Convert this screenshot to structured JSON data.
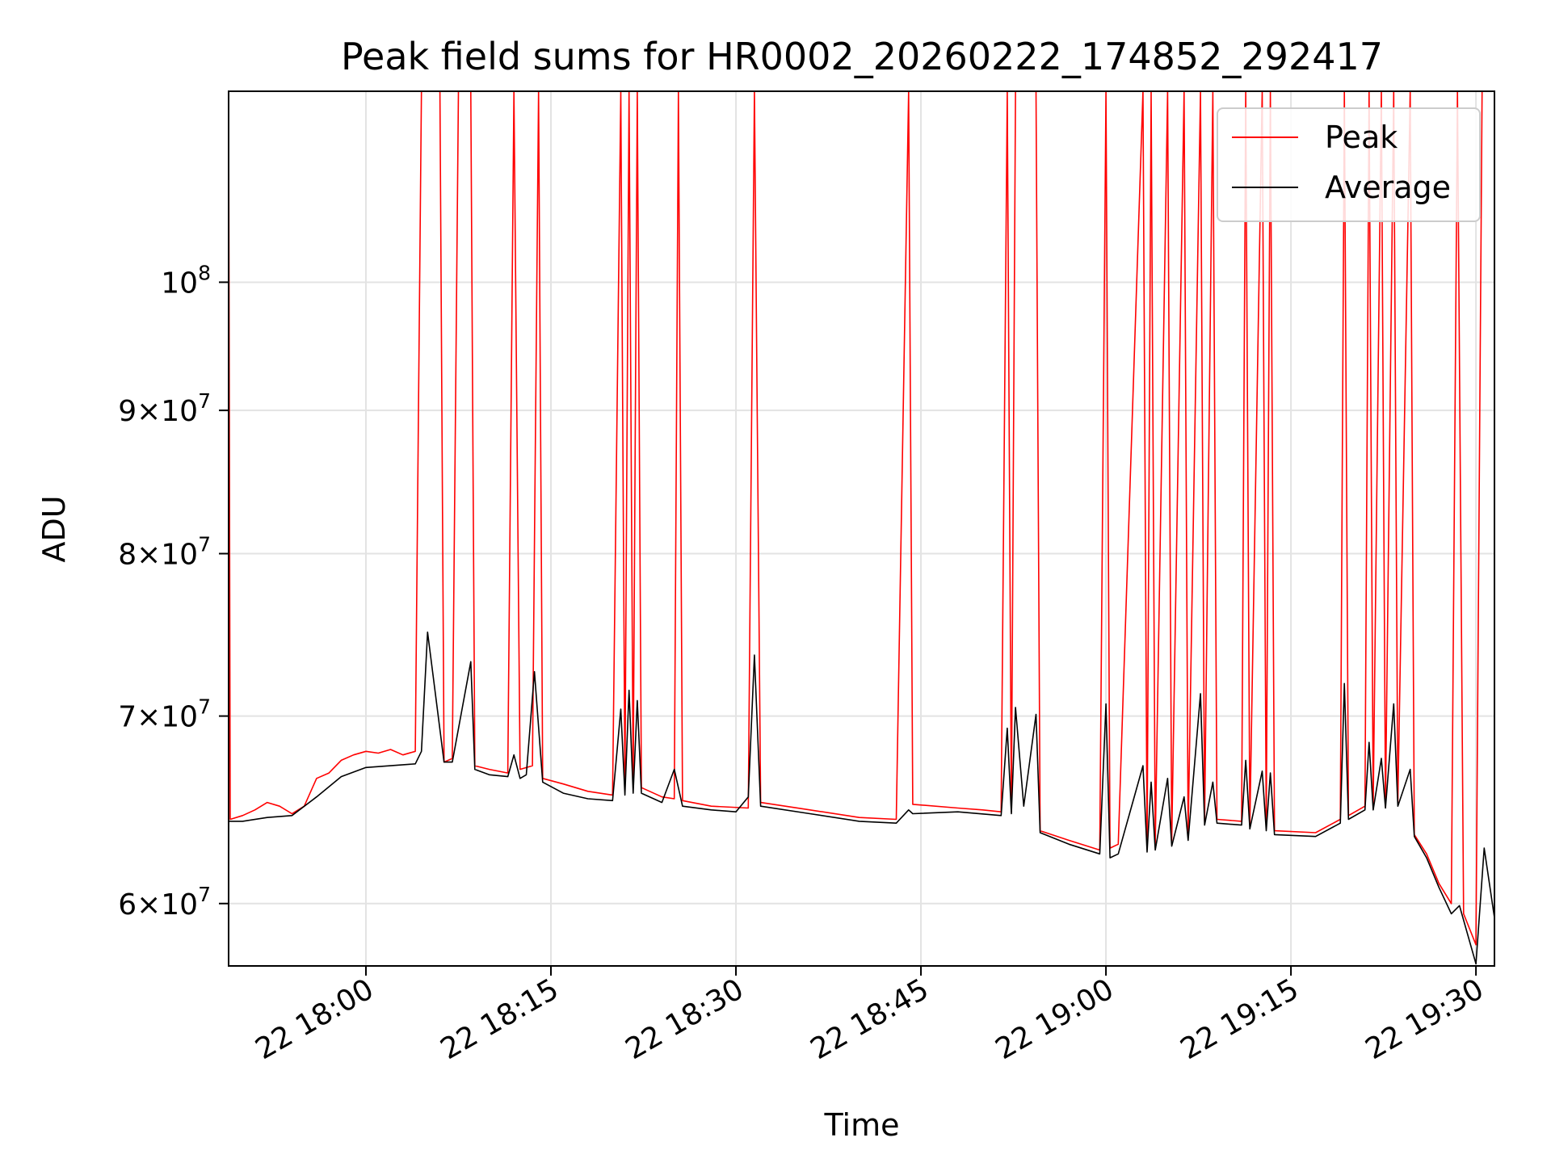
{
  "chart_data": {
    "type": "line",
    "title": "Peak field sums for HR0002_20260222_174852_292417",
    "xlabel": "Time",
    "ylabel": "ADU",
    "yscale": "log",
    "ylim": [
      57000000,
      117000000
    ],
    "xlim": [
      "2026-02-22 17:48:52",
      "2026-02-22 19:31:30"
    ],
    "grid": true,
    "legend": "top-right",
    "xticks": [
      {
        "t": "2026-02-22 18:00",
        "label": "22 18:00"
      },
      {
        "t": "2026-02-22 18:15",
        "label": "22 18:15"
      },
      {
        "t": "2026-02-22 18:30",
        "label": "22 18:30"
      },
      {
        "t": "2026-02-22 18:45",
        "label": "22 18:45"
      },
      {
        "t": "2026-02-22 19:00",
        "label": "22 19:00"
      },
      {
        "t": "2026-02-22 19:15",
        "label": "22 19:15"
      },
      {
        "t": "2026-02-22 19:30",
        "label": "22 19:30"
      }
    ],
    "yticks": [
      {
        "v": 60000000,
        "base": "6×10",
        "exp": "7"
      },
      {
        "v": 70000000,
        "base": "7×10",
        "exp": "7"
      },
      {
        "v": 80000000,
        "base": "8×10",
        "exp": "7"
      },
      {
        "v": 90000000,
        "base": "9×10",
        "exp": "7"
      },
      {
        "v": 100000000,
        "base": "10",
        "exp": "8"
      }
    ],
    "series": [
      {
        "name": "Peak",
        "color": "#ff0000",
        "points": [
          [
            "2026-02-22 17:48:52",
            117000000
          ],
          [
            "2026-02-22 17:49:00",
            64300000
          ],
          [
            "2026-02-22 17:50:00",
            64500000
          ],
          [
            "2026-02-22 17:51:00",
            64800000
          ],
          [
            "2026-02-22 17:52:00",
            65200000
          ],
          [
            "2026-02-22 17:53:00",
            65000000
          ],
          [
            "2026-02-22 17:54:00",
            64600000
          ],
          [
            "2026-02-22 17:55:00",
            65000000
          ],
          [
            "2026-02-22 17:56:00",
            66500000
          ],
          [
            "2026-02-22 17:57:00",
            66800000
          ],
          [
            "2026-02-22 17:58:00",
            67500000
          ],
          [
            "2026-02-22 17:59:00",
            67800000
          ],
          [
            "2026-02-22 18:00:00",
            68000000
          ],
          [
            "2026-02-22 18:01:00",
            67900000
          ],
          [
            "2026-02-22 18:02:00",
            68100000
          ],
          [
            "2026-02-22 18:03:00",
            67800000
          ],
          [
            "2026-02-22 18:04:00",
            68000000
          ],
          [
            "2026-02-22 18:04:30",
            117000000
          ],
          [
            "2026-02-22 18:06:00",
            117000000
          ],
          [
            "2026-02-22 18:06:20",
            67400000
          ],
          [
            "2026-02-22 18:07:00",
            67600000
          ],
          [
            "2026-02-22 18:07:30",
            117000000
          ],
          [
            "2026-02-22 18:08:30",
            117000000
          ],
          [
            "2026-02-22 18:08:50",
            67200000
          ],
          [
            "2026-02-22 18:10:00",
            67000000
          ],
          [
            "2026-02-22 18:11:30",
            66800000
          ],
          [
            "2026-02-22 18:12:00",
            117000000
          ],
          [
            "2026-02-22 18:12:30",
            67000000
          ],
          [
            "2026-02-22 18:13:30",
            67200000
          ],
          [
            "2026-02-22 18:14:00",
            117000000
          ],
          [
            "2026-02-22 18:14:20",
            66500000
          ],
          [
            "2026-02-22 18:16:00",
            66200000
          ],
          [
            "2026-02-22 18:18:00",
            65800000
          ],
          [
            "2026-02-22 18:20:00",
            65600000
          ],
          [
            "2026-02-22 18:20:40",
            117000000
          ],
          [
            "2026-02-22 18:21:00",
            66000000
          ],
          [
            "2026-02-22 18:21:20",
            117000000
          ],
          [
            "2026-02-22 18:21:40",
            66200000
          ],
          [
            "2026-02-22 18:22:00",
            117000000
          ],
          [
            "2026-02-22 18:22:20",
            66000000
          ],
          [
            "2026-02-22 18:24:00",
            65500000
          ],
          [
            "2026-02-22 18:25:00",
            65400000
          ],
          [
            "2026-02-22 18:25:20",
            117000000
          ],
          [
            "2026-02-22 18:25:40",
            65300000
          ],
          [
            "2026-02-22 18:28:00",
            65000000
          ],
          [
            "2026-02-22 18:31:00",
            64900000
          ],
          [
            "2026-02-22 18:31:30",
            117000000
          ],
          [
            "2026-02-22 18:32:00",
            65200000
          ],
          [
            "2026-02-22 18:36:00",
            64800000
          ],
          [
            "2026-02-22 18:40:00",
            64400000
          ],
          [
            "2026-02-22 18:43:00",
            64300000
          ],
          [
            "2026-02-22 18:44:00",
            117000000
          ],
          [
            "2026-02-22 18:44:20",
            65100000
          ],
          [
            "2026-02-22 18:48:00",
            64900000
          ],
          [
            "2026-02-22 18:50:00",
            64800000
          ],
          [
            "2026-02-22 18:51:30",
            64700000
          ],
          [
            "2026-02-22 18:52:00",
            117000000
          ],
          [
            "2026-02-22 18:52:20",
            64700000
          ],
          [
            "2026-02-22 18:52:40",
            117000000
          ],
          [
            "2026-02-22 18:54:20",
            117000000
          ],
          [
            "2026-02-22 18:54:40",
            63700000
          ],
          [
            "2026-02-22 18:57:00",
            63200000
          ],
          [
            "2026-02-22 18:59:30",
            62700000
          ],
          [
            "2026-02-22 19:00:00",
            117000000
          ],
          [
            "2026-02-22 19:00:20",
            62800000
          ],
          [
            "2026-02-22 19:01:00",
            63000000
          ],
          [
            "2026-02-22 19:03:00",
            117000000
          ],
          [
            "2026-02-22 19:03:20",
            62900000
          ],
          [
            "2026-02-22 19:03:40",
            117000000
          ],
          [
            "2026-02-22 19:04:00",
            63000000
          ],
          [
            "2026-02-22 19:05:00",
            117000000
          ],
          [
            "2026-02-22 19:05:20",
            63200000
          ],
          [
            "2026-02-22 19:06:20",
            117000000
          ],
          [
            "2026-02-22 19:06:40",
            63500000
          ],
          [
            "2026-02-22 19:07:40",
            117000000
          ],
          [
            "2026-02-22 19:08:00",
            64200000
          ],
          [
            "2026-02-22 19:08:40",
            117000000
          ],
          [
            "2026-02-22 19:09:00",
            64300000
          ],
          [
            "2026-02-22 19:11:00",
            64200000
          ],
          [
            "2026-02-22 19:11:20",
            117000000
          ],
          [
            "2026-02-22 19:11:40",
            64000000
          ],
          [
            "2026-02-22 19:12:40",
            117000000
          ],
          [
            "2026-02-22 19:13:00",
            64000000
          ],
          [
            "2026-02-22 19:13:20",
            117000000
          ],
          [
            "2026-02-22 19:13:40",
            63700000
          ],
          [
            "2026-02-22 19:17:00",
            63600000
          ],
          [
            "2026-02-22 19:19:00",
            64300000
          ],
          [
            "2026-02-22 19:19:20",
            117000000
          ],
          [
            "2026-02-22 19:19:40",
            64500000
          ],
          [
            "2026-02-22 19:21:00",
            65000000
          ],
          [
            "2026-02-22 19:21:20",
            117000000
          ],
          [
            "2026-02-22 19:21:40",
            65000000
          ],
          [
            "2026-02-22 19:22:20",
            117000000
          ],
          [
            "2026-02-22 19:22:40",
            65000000
          ],
          [
            "2026-02-22 19:23:20",
            117000000
          ],
          [
            "2026-02-22 19:23:40",
            65200000
          ],
          [
            "2026-02-22 19:24:40",
            117000000
          ],
          [
            "2026-02-22 19:25:00",
            63500000
          ],
          [
            "2026-02-22 19:26:00",
            62500000
          ],
          [
            "2026-02-22 19:27:00",
            61000000
          ],
          [
            "2026-02-22 19:28:00",
            60000000
          ],
          [
            "2026-02-22 19:28:30",
            117000000
          ],
          [
            "2026-02-22 19:29:00",
            59500000
          ],
          [
            "2026-02-22 19:30:00",
            58000000
          ],
          [
            "2026-02-22 19:30:30",
            117000000
          ],
          [
            "2026-02-22 19:31:30",
            117000000
          ]
        ]
      },
      {
        "name": "Average",
        "color": "#000000",
        "points": [
          [
            "2026-02-22 17:48:52",
            64200000
          ],
          [
            "2026-02-22 17:50:00",
            64200000
          ],
          [
            "2026-02-22 17:52:00",
            64400000
          ],
          [
            "2026-02-22 17:54:00",
            64500000
          ],
          [
            "2026-02-22 17:56:00",
            65500000
          ],
          [
            "2026-02-22 17:58:00",
            66600000
          ],
          [
            "2026-02-22 18:00:00",
            67100000
          ],
          [
            "2026-02-22 18:02:00",
            67200000
          ],
          [
            "2026-02-22 18:04:00",
            67300000
          ],
          [
            "2026-02-22 18:04:30",
            68000000
          ],
          [
            "2026-02-22 18:05:00",
            75000000
          ],
          [
            "2026-02-22 18:06:20",
            67400000
          ],
          [
            "2026-02-22 18:07:00",
            67400000
          ],
          [
            "2026-02-22 18:08:30",
            73200000
          ],
          [
            "2026-02-22 18:08:50",
            67000000
          ],
          [
            "2026-02-22 18:10:00",
            66700000
          ],
          [
            "2026-02-22 18:11:30",
            66600000
          ],
          [
            "2026-02-22 18:12:00",
            67800000
          ],
          [
            "2026-02-22 18:12:30",
            66500000
          ],
          [
            "2026-02-22 18:13:00",
            66700000
          ],
          [
            "2026-02-22 18:13:40",
            72600000
          ],
          [
            "2026-02-22 18:14:20",
            66300000
          ],
          [
            "2026-02-22 18:16:00",
            65700000
          ],
          [
            "2026-02-22 18:18:00",
            65400000
          ],
          [
            "2026-02-22 18:20:00",
            65300000
          ],
          [
            "2026-02-22 18:20:40",
            70400000
          ],
          [
            "2026-02-22 18:21:00",
            65600000
          ],
          [
            "2026-02-22 18:21:20",
            71500000
          ],
          [
            "2026-02-22 18:21:40",
            65700000
          ],
          [
            "2026-02-22 18:22:00",
            70900000
          ],
          [
            "2026-02-22 18:22:20",
            65700000
          ],
          [
            "2026-02-22 18:24:00",
            65200000
          ],
          [
            "2026-02-22 18:25:00",
            67000000
          ],
          [
            "2026-02-22 18:25:40",
            65000000
          ],
          [
            "2026-02-22 18:28:00",
            64800000
          ],
          [
            "2026-02-22 18:30:00",
            64700000
          ],
          [
            "2026-02-22 18:31:00",
            65500000
          ],
          [
            "2026-02-22 18:31:30",
            73600000
          ],
          [
            "2026-02-22 18:32:00",
            65000000
          ],
          [
            "2026-02-22 18:36:00",
            64600000
          ],
          [
            "2026-02-22 18:40:00",
            64200000
          ],
          [
            "2026-02-22 18:43:00",
            64100000
          ],
          [
            "2026-02-22 18:44:00",
            64800000
          ],
          [
            "2026-02-22 18:44:20",
            64600000
          ],
          [
            "2026-02-22 18:48:00",
            64700000
          ],
          [
            "2026-02-22 18:51:30",
            64500000
          ],
          [
            "2026-02-22 18:52:00",
            69300000
          ],
          [
            "2026-02-22 18:52:20",
            64600000
          ],
          [
            "2026-02-22 18:52:40",
            70500000
          ],
          [
            "2026-02-22 18:53:20",
            65000000
          ],
          [
            "2026-02-22 18:54:20",
            70100000
          ],
          [
            "2026-02-22 18:54:40",
            63600000
          ],
          [
            "2026-02-22 18:57:00",
            63000000
          ],
          [
            "2026-02-22 18:59:30",
            62500000
          ],
          [
            "2026-02-22 19:00:00",
            70700000
          ],
          [
            "2026-02-22 19:00:20",
            62300000
          ],
          [
            "2026-02-22 19:01:00",
            62500000
          ],
          [
            "2026-02-22 19:03:00",
            67200000
          ],
          [
            "2026-02-22 19:03:20",
            62600000
          ],
          [
            "2026-02-22 19:03:40",
            66300000
          ],
          [
            "2026-02-22 19:04:00",
            62700000
          ],
          [
            "2026-02-22 19:05:00",
            66500000
          ],
          [
            "2026-02-22 19:05:20",
            62900000
          ],
          [
            "2026-02-22 19:06:20",
            65500000
          ],
          [
            "2026-02-22 19:06:40",
            63200000
          ],
          [
            "2026-02-22 19:07:40",
            71300000
          ],
          [
            "2026-02-22 19:08:00",
            64000000
          ],
          [
            "2026-02-22 19:08:40",
            66300000
          ],
          [
            "2026-02-22 19:09:00",
            64100000
          ],
          [
            "2026-02-22 19:11:00",
            64000000
          ],
          [
            "2026-02-22 19:11:20",
            67500000
          ],
          [
            "2026-02-22 19:11:40",
            63800000
          ],
          [
            "2026-02-22 19:12:40",
            66900000
          ],
          [
            "2026-02-22 19:13:00",
            63700000
          ],
          [
            "2026-02-22 19:13:20",
            66800000
          ],
          [
            "2026-02-22 19:13:40",
            63500000
          ],
          [
            "2026-02-22 19:17:00",
            63400000
          ],
          [
            "2026-02-22 19:19:00",
            64100000
          ],
          [
            "2026-02-22 19:19:20",
            71900000
          ],
          [
            "2026-02-22 19:19:40",
            64300000
          ],
          [
            "2026-02-22 19:21:00",
            64800000
          ],
          [
            "2026-02-22 19:21:20",
            68500000
          ],
          [
            "2026-02-22 19:21:40",
            64800000
          ],
          [
            "2026-02-22 19:22:20",
            67600000
          ],
          [
            "2026-02-22 19:22:40",
            64900000
          ],
          [
            "2026-02-22 19:23:20",
            70700000
          ],
          [
            "2026-02-22 19:23:40",
            65000000
          ],
          [
            "2026-02-22 19:24:40",
            67000000
          ],
          [
            "2026-02-22 19:25:00",
            63400000
          ],
          [
            "2026-02-22 19:26:00",
            62300000
          ],
          [
            "2026-02-22 19:27:00",
            60800000
          ],
          [
            "2026-02-22 19:28:00",
            59500000
          ],
          [
            "2026-02-22 19:28:40",
            59900000
          ],
          [
            "2026-02-22 19:30:00",
            57100000
          ],
          [
            "2026-02-22 19:30:40",
            62800000
          ],
          [
            "2026-02-22 19:31:30",
            59300000
          ]
        ]
      }
    ]
  }
}
